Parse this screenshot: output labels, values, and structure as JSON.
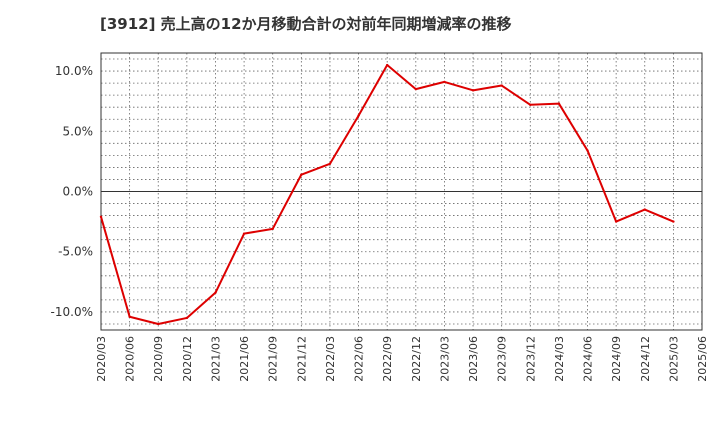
{
  "chart_data": {
    "type": "line",
    "title": "[3912]  売上高の12か月移動合計の対前年同期増減率の推移",
    "xlabel": "",
    "ylabel": "",
    "ylim": [
      -11.5,
      11.5
    ],
    "yticks": [
      10,
      5,
      0,
      -5,
      -10
    ],
    "ytick_labels": [
      "10.0%",
      "5.0%",
      "0.0%",
      "-5.0%",
      "-10.0%"
    ],
    "categories": [
      "2020/03",
      "2020/06",
      "2020/09",
      "2020/12",
      "2021/03",
      "2021/06",
      "2021/09",
      "2021/12",
      "2022/03",
      "2022/06",
      "2022/09",
      "2022/12",
      "2023/03",
      "2023/06",
      "2023/09",
      "2023/12",
      "2024/03",
      "2024/06",
      "2024/09",
      "2024/12",
      "2025/03",
      "2025/06"
    ],
    "series": [
      {
        "name": "増減率",
        "color": "#dd0000",
        "values": [
          -2.1,
          -10.4,
          -11.0,
          -10.5,
          -8.4,
          -3.5,
          -3.1,
          1.4,
          2.3,
          6.3,
          10.5,
          8.5,
          9.1,
          8.4,
          8.8,
          7.2,
          7.3,
          3.4,
          -2.5,
          -1.5,
          -2.5,
          null
        ]
      }
    ],
    "grid": true,
    "legend": "none"
  }
}
